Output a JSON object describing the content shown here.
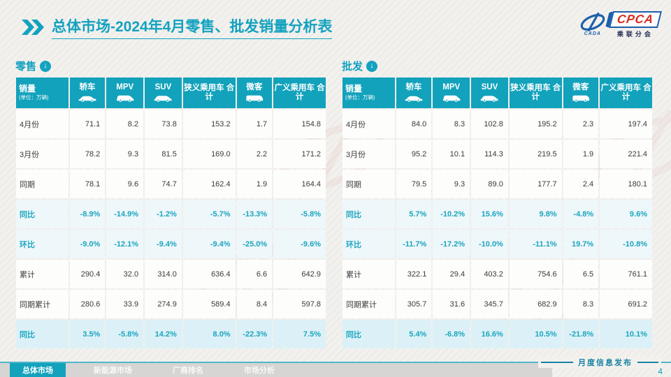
{
  "header": {
    "title_main": "总体市场",
    "title_rest": "-2024年4月零售、批发销量分析表",
    "logo": {
      "acronym": "CPCA",
      "cada": "CADA",
      "chinese": "乘联分会"
    }
  },
  "tables": {
    "retail": {
      "section_label": "零售",
      "header": {
        "sales": "销量",
        "unit": "(单位：万辆)",
        "columns": [
          {
            "label": "轿车",
            "icon": "sedan-icon"
          },
          {
            "label": "MPV",
            "icon": "mpv-icon"
          },
          {
            "label": "SUV",
            "icon": "suv-icon"
          },
          {
            "label": "狭义乘用车 合计",
            "icon": null
          },
          {
            "label": "微客",
            "icon": "minibus-icon"
          },
          {
            "label": "广义乘用车 合计",
            "icon": null
          }
        ]
      },
      "rows": [
        {
          "label": "4月份",
          "style": "normal",
          "values": [
            "71.1",
            "8.2",
            "73.8",
            "153.2",
            "1.7",
            "154.8"
          ]
        },
        {
          "label": "3月份",
          "style": "normal",
          "values": [
            "78.2",
            "9.3",
            "81.5",
            "169.0",
            "2.2",
            "171.2"
          ]
        },
        {
          "label": "同期",
          "style": "normal",
          "values": [
            "78.1",
            "9.6",
            "74.7",
            "162.4",
            "1.9",
            "164.4"
          ]
        },
        {
          "label": "同比",
          "style": "pct",
          "values": [
            "-8.9%",
            "-14.9%",
            "-1.2%",
            "-5.7%",
            "-13.3%",
            "-5.8%"
          ]
        },
        {
          "label": "环比",
          "style": "pct",
          "values": [
            "-9.0%",
            "-12.1%",
            "-9.4%",
            "-9.4%",
            "-25.0%",
            "-9.6%"
          ]
        },
        {
          "label": "累计",
          "style": "normal",
          "values": [
            "290.4",
            "32.0",
            "314.0",
            "636.4",
            "6.6",
            "642.9"
          ]
        },
        {
          "label": "同期累计",
          "style": "normal",
          "values": [
            "280.6",
            "33.9",
            "274.9",
            "589.4",
            "8.4",
            "597.8"
          ]
        },
        {
          "label": "同比",
          "style": "pct-hl",
          "values": [
            "3.5%",
            "-5.8%",
            "14.2%",
            "8.0%",
            "-22.3%",
            "7.5%"
          ]
        }
      ]
    },
    "wholesale": {
      "section_label": "批发",
      "header": {
        "sales": "销量",
        "unit": "(单位：万辆)",
        "columns": [
          {
            "label": "轿车",
            "icon": "sedan-icon"
          },
          {
            "label": "MPV",
            "icon": "mpv-icon"
          },
          {
            "label": "SUV",
            "icon": "suv-icon"
          },
          {
            "label": "狭义乘用车 合计",
            "icon": null
          },
          {
            "label": "微客",
            "icon": "minibus-icon"
          },
          {
            "label": "广义乘用车 合计",
            "icon": null
          }
        ]
      },
      "rows": [
        {
          "label": "4月份",
          "style": "normal",
          "values": [
            "84.0",
            "8.3",
            "102.8",
            "195.2",
            "2.3",
            "197.4"
          ]
        },
        {
          "label": "3月份",
          "style": "normal",
          "values": [
            "95.2",
            "10.1",
            "114.3",
            "219.5",
            "1.9",
            "221.4"
          ]
        },
        {
          "label": "同期",
          "style": "normal",
          "values": [
            "79.5",
            "9.3",
            "89.0",
            "177.7",
            "2.4",
            "180.1"
          ]
        },
        {
          "label": "同比",
          "style": "pct",
          "values": [
            "5.7%",
            "-10.2%",
            "15.6%",
            "9.8%",
            "-4.8%",
            "9.6%"
          ]
        },
        {
          "label": "环比",
          "style": "pct",
          "values": [
            "-11.7%",
            "-17.2%",
            "-10.0%",
            "-11.1%",
            "19.7%",
            "-10.8%"
          ]
        },
        {
          "label": "累计",
          "style": "normal",
          "values": [
            "322.1",
            "29.4",
            "403.2",
            "754.6",
            "6.5",
            "761.1"
          ]
        },
        {
          "label": "同期累计",
          "style": "normal",
          "values": [
            "305.7",
            "31.6",
            "345.7",
            "682.9",
            "8.3",
            "691.2"
          ]
        },
        {
          "label": "同比",
          "style": "pct-hl",
          "values": [
            "5.4%",
            "-6.8%",
            "16.6%",
            "10.5%",
            "-21.8%",
            "10.1%"
          ]
        }
      ]
    }
  },
  "footer": {
    "tabs": [
      {
        "label": "总体市场",
        "active": true
      },
      {
        "label": "新能源市场",
        "active": false
      },
      {
        "label": "厂商排名",
        "active": false
      },
      {
        "label": "市场分析",
        "active": false
      }
    ],
    "release_label": "月度信息发布",
    "page_number": "4"
  },
  "colors": {
    "accent": "#13A2BF",
    "table_header_bg": "#12A2BC",
    "highlight_row_bg": "#DCF1F7",
    "logo_red": "#D52B1E",
    "logo_blue": "#1B5FAA"
  }
}
